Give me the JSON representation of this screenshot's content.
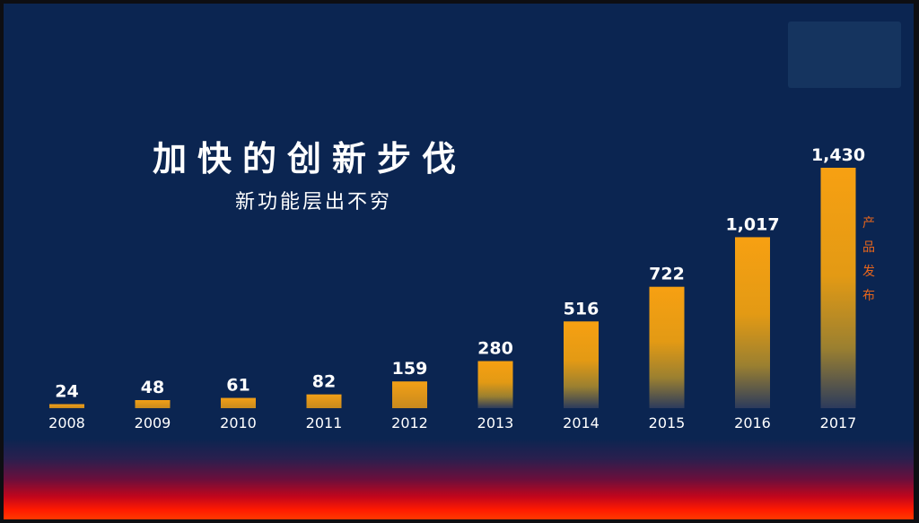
{
  "title": "加快的创新步伐",
  "subtitle": "新功能层出不穷",
  "side_label": "产品发布",
  "colors": {
    "background": "#0b2551",
    "bar_top": "#f59a10",
    "bar_bottom": "#2a3c5e",
    "side_label": "#e8661b",
    "text": "#ffffff"
  },
  "chart_data": {
    "type": "bar",
    "categories": [
      "2008",
      "2009",
      "2010",
      "2011",
      "2012",
      "2013",
      "2014",
      "2015",
      "2016",
      "2017"
    ],
    "values": [
      24,
      48,
      61,
      82,
      159,
      280,
      516,
      722,
      1017,
      1430
    ],
    "value_labels": [
      "24",
      "48",
      "61",
      "82",
      "159",
      "280",
      "516",
      "722",
      "1,017",
      "1,430"
    ],
    "title": "加快的创新步伐",
    "subtitle": "新功能层出不穷",
    "ylabel": "产品发布",
    "ylim": [
      0,
      1430
    ],
    "grid": false,
    "legend": "none"
  }
}
